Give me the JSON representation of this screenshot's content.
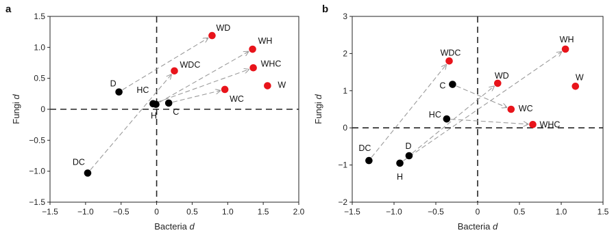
{
  "colors": {
    "black": "#000000",
    "red": "#e8141b",
    "arrow": "#9a9a9a",
    "axis": "#222222"
  },
  "chart_data": [
    {
      "panel": "a",
      "type": "scatter",
      "xlabel": "Bacteria d",
      "ylabel": "Fungi d",
      "xlim": [
        -1.5,
        2.0
      ],
      "ylim": [
        -1.5,
        1.5
      ],
      "xticks": [
        -1.5,
        -1.0,
        -0.5,
        0,
        0.5,
        1.0,
        1.5,
        2.0
      ],
      "xtick_labels": [
        "−1.5",
        "−1.0",
        "−0.5",
        "0",
        "0.5",
        "1.0",
        "1.5",
        "2.0"
      ],
      "yticks": [
        -1.5,
        -1.0,
        -0.5,
        0,
        0.5,
        1.0,
        1.5
      ],
      "ytick_labels": [
        "−1.5",
        "−1.0",
        "−0.5",
        "0",
        "0.5",
        "1.0",
        "1.5"
      ],
      "grid": false,
      "zero_lines": true,
      "points": [
        {
          "label": "D",
          "x": -0.53,
          "y": 0.28,
          "color": "black"
        },
        {
          "label": "HC",
          "x": -0.05,
          "y": 0.09,
          "color": "black"
        },
        {
          "label": "H",
          "x": -0.01,
          "y": 0.08,
          "color": "black"
        },
        {
          "label": "C",
          "x": 0.17,
          "y": 0.1,
          "color": "black"
        },
        {
          "label": "DC",
          "x": -0.97,
          "y": -1.03,
          "color": "black"
        },
        {
          "label": "WD",
          "x": 0.78,
          "y": 1.19,
          "color": "red"
        },
        {
          "label": "WDC",
          "x": 0.25,
          "y": 0.62,
          "color": "red"
        },
        {
          "label": "WH",
          "x": 1.35,
          "y": 0.97,
          "color": "red"
        },
        {
          "label": "WHC",
          "x": 1.36,
          "y": 0.67,
          "color": "red"
        },
        {
          "label": "WC",
          "x": 0.96,
          "y": 0.32,
          "color": "red"
        },
        {
          "label": "W",
          "x": 1.56,
          "y": 0.38,
          "color": "red"
        }
      ],
      "arrows": [
        {
          "from": "D",
          "to": "WD"
        },
        {
          "from": "DC",
          "to": "WDC"
        },
        {
          "from": "H",
          "to": "WH"
        },
        {
          "from": "HC",
          "to": "WHC"
        },
        {
          "from": "C",
          "to": "WC"
        }
      ]
    },
    {
      "panel": "b",
      "type": "scatter",
      "xlabel": "Bacteria d",
      "ylabel": "Fungi d",
      "xlim": [
        -1.5,
        1.5
      ],
      "ylim": [
        -2,
        3
      ],
      "xticks": [
        -1.5,
        -1.0,
        -0.5,
        0,
        0.5,
        1.0,
        1.5
      ],
      "xtick_labels": [
        "−1.5",
        "−1.0",
        "−0.5",
        "0",
        "0.5",
        "1.0",
        "1.5"
      ],
      "yticks": [
        -2,
        -1,
        0,
        1,
        2,
        3
      ],
      "ytick_labels": [
        "−2",
        "−1",
        "0",
        "1",
        "2",
        "3"
      ],
      "grid": false,
      "zero_lines": true,
      "points": [
        {
          "label": "DC",
          "x": -1.3,
          "y": -0.88,
          "color": "black"
        },
        {
          "label": "D",
          "x": -0.82,
          "y": -0.75,
          "color": "black"
        },
        {
          "label": "H",
          "x": -0.93,
          "y": -0.95,
          "color": "black"
        },
        {
          "label": "C",
          "x": -0.3,
          "y": 1.17,
          "color": "black"
        },
        {
          "label": "HC",
          "x": -0.37,
          "y": 0.24,
          "color": "black"
        },
        {
          "label": "WDC",
          "x": -0.34,
          "y": 1.8,
          "color": "red"
        },
        {
          "label": "WD",
          "x": 0.24,
          "y": 1.2,
          "color": "red"
        },
        {
          "label": "WH",
          "x": 1.05,
          "y": 2.12,
          "color": "red"
        },
        {
          "label": "W",
          "x": 1.17,
          "y": 1.12,
          "color": "red"
        },
        {
          "label": "WC",
          "x": 0.4,
          "y": 0.5,
          "color": "red"
        },
        {
          "label": "WHC",
          "x": 0.66,
          "y": 0.09,
          "color": "red"
        }
      ],
      "arrows": [
        {
          "from": "DC",
          "to": "WDC"
        },
        {
          "from": "D",
          "to": "WD"
        },
        {
          "from": "H",
          "to": "WH"
        },
        {
          "from": "C",
          "to": "WC"
        },
        {
          "from": "HC",
          "to": "WHC"
        }
      ]
    }
  ]
}
